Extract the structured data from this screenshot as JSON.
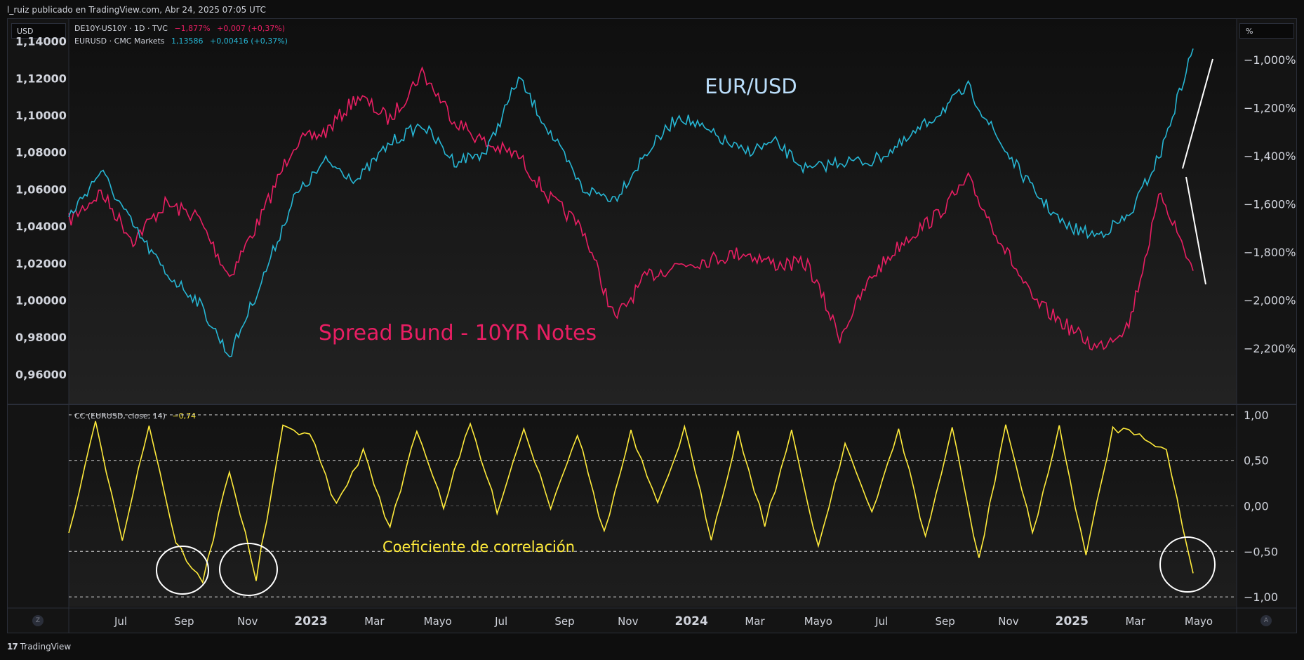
{
  "header": {
    "published_by": "l_ruiz publicado en TradingView.com, Abr 24, 2025 07:05 UTC"
  },
  "toolbar": {
    "currency": "USD",
    "right_scale_unit": "%"
  },
  "legend": {
    "series1": {
      "symbol": "DE10Y-US10Y · 1D · TVC",
      "value": "−1,877%",
      "change": "+0,007 (+0,37%)"
    },
    "series2": {
      "symbol": "EURUSD · CMC Markets",
      "value": "1,13586",
      "change": "+0,00416 (+0,37%)"
    },
    "indicator": {
      "symbol": "CC (EURUSD, close, 14)",
      "value": "−0,74"
    }
  },
  "annotations": {
    "eurusd": "EUR/USD",
    "spread": "Spread Bund - 10YR Notes",
    "cc": "Coeficiente de correlación"
  },
  "footer": {
    "brand": "TradingView",
    "logo": "17",
    "z_button": "Z",
    "a_button": "A"
  },
  "colors": {
    "eurusd": "#26b6d4",
    "spread": "#e91e63",
    "cc": "#ffeb3b",
    "annot_eurusd": "#bbdefb"
  },
  "chart_data": [
    {
      "type": "line",
      "title": "",
      "x": [
        "2022-05",
        "2022-06",
        "2022-07",
        "2022-08",
        "2022-09",
        "2022-10",
        "2022-11",
        "2022-12",
        "2023-01",
        "2023-02",
        "2023-03",
        "2023-04",
        "2023-05",
        "2023-06",
        "2023-07",
        "2023-08",
        "2023-09",
        "2023-10",
        "2023-11",
        "2023-12",
        "2024-01",
        "2024-02",
        "2024-03",
        "2024-04",
        "2024-05",
        "2024-06",
        "2024-07",
        "2024-08",
        "2024-09",
        "2024-10",
        "2024-11",
        "2024-12",
        "2025-01",
        "2025-02",
        "2025-03",
        "2025-04"
      ],
      "x_tick_labels": [
        "Jul",
        "Sep",
        "Nov",
        "2023",
        "Mar",
        "Mayo",
        "Jul",
        "Sep",
        "Nov",
        "2024",
        "Mar",
        "Mayo",
        "Jul",
        "Sep",
        "Nov",
        "2025",
        "Mar",
        "Mayo"
      ],
      "left_axis": {
        "ticks": [
          "1,14000",
          "1,12000",
          "1,10000",
          "1,08000",
          "1,06000",
          "1,04000",
          "1,02000",
          "1,00000",
          "0,98000",
          "0,96000"
        ],
        "ylim": [
          0.944,
          1.152
        ]
      },
      "right_axis": {
        "ticks": [
          "−1,000%",
          "−1,200%",
          "−1,400%",
          "−1,600%",
          "−1,800%",
          "−2,000%",
          "−2,200%"
        ],
        "ylim": [
          -2.43,
          -0.83
        ]
      },
      "series": [
        {
          "name": "EURUSD",
          "axis": "left",
          "values": [
            1.045,
            1.07,
            1.04,
            1.015,
            1.0,
            0.97,
            1.01,
            1.055,
            1.075,
            1.065,
            1.085,
            1.095,
            1.075,
            1.08,
            1.12,
            1.09,
            1.06,
            1.055,
            1.08,
            1.1,
            1.09,
            1.08,
            1.085,
            1.07,
            1.075,
            1.075,
            1.085,
            1.1,
            1.115,
            1.085,
            1.06,
            1.04,
            1.035,
            1.045,
            1.08,
            1.136
          ]
        },
        {
          "name": "DE10Y-US10Y",
          "axis": "right",
          "values": [
            -1.67,
            -1.55,
            -1.75,
            -1.6,
            -1.65,
            -1.9,
            -1.65,
            -1.35,
            -1.3,
            -1.15,
            -1.25,
            -1.05,
            -1.25,
            -1.35,
            -1.4,
            -1.58,
            -1.7,
            -2.08,
            -1.9,
            -1.85,
            -1.83,
            -1.8,
            -1.85,
            -1.85,
            -2.15,
            -1.9,
            -1.75,
            -1.65,
            -1.5,
            -1.75,
            -2.0,
            -2.1,
            -2.2,
            -2.1,
            -1.55,
            -1.877
          ]
        }
      ]
    },
    {
      "type": "line",
      "title": "",
      "y_ticks": [
        "1,00",
        "0,50",
        "0,00",
        "−0,50",
        "−1,00"
      ],
      "ylim": [
        -1.03,
        1.03
      ],
      "series": [
        {
          "name": "CC (EURUSD, close, 14)",
          "values": [
            -0.3,
            0.9,
            -0.35,
            0.9,
            -0.4,
            -0.85,
            0.4,
            -0.8,
            0.85,
            0.8,
            0.0,
            0.6,
            -0.25,
            0.85,
            0.0,
            0.9,
            -0.05,
            0.85,
            0.0,
            0.8,
            -0.3,
            0.8,
            0.0,
            0.85,
            -0.35,
            0.8,
            -0.2,
            0.8,
            -0.45,
            0.7,
            -0.1,
            0.85,
            -0.35,
            0.85,
            -0.6,
            0.9,
            -0.3,
            0.85,
            -0.55,
            0.85,
            0.8,
            0.6,
            -0.74
          ]
        }
      ]
    }
  ]
}
